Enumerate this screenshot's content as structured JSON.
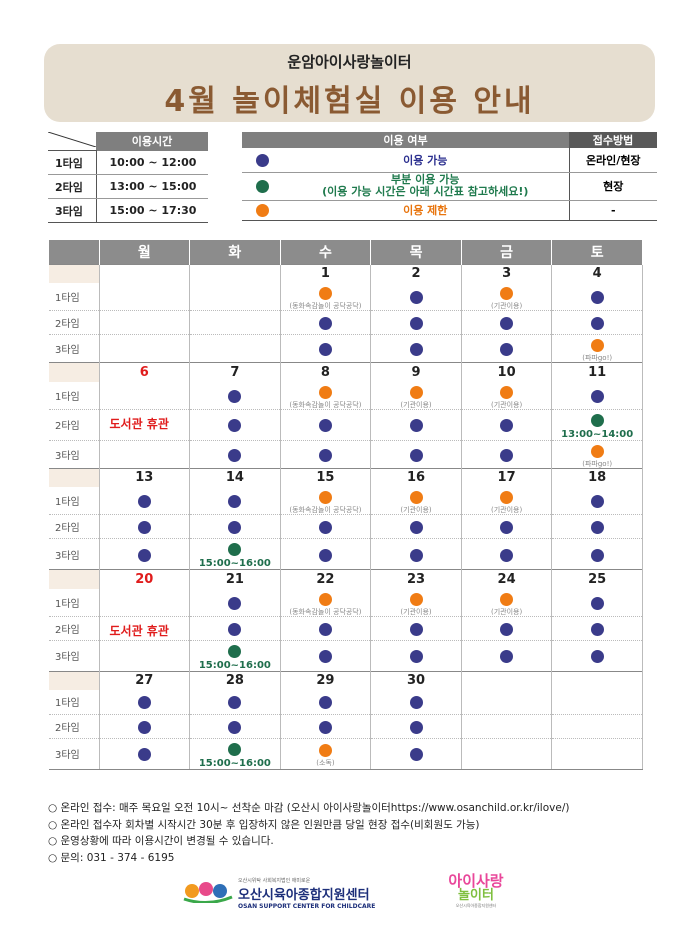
{
  "header": {
    "subtitle": "운암아이사랑놀이터",
    "title": "4월 놀이체험실 이용 안내"
  },
  "time_table": {
    "header": "이용시간",
    "slots": [
      {
        "label": "1타임",
        "time": "10:00 ~ 12:00"
      },
      {
        "label": "2타임",
        "time": "13:00 ~ 15:00"
      },
      {
        "label": "3타임",
        "time": "15:00 ~ 17:30"
      }
    ]
  },
  "legend": {
    "header_usage": "이용 여부",
    "header_method": "접수방법",
    "rows": [
      {
        "dot": "blue",
        "text": "이용 가능",
        "text2": "",
        "method": "온라인/현장"
      },
      {
        "dot": "green",
        "text": "부분 이용 가능",
        "text2": "(이용 가능 시간은 아래 시간표 참고하세요!)",
        "method": "현장"
      },
      {
        "dot": "orange",
        "text": "이용 제한",
        "text2": "",
        "method": "-"
      }
    ]
  },
  "colors": {
    "blue": "#3a3b8a",
    "green": "#1f6e4c",
    "orange": "#f07c14",
    "title": "#8a5a32",
    "red": "#e01c1c"
  },
  "calendar": {
    "days": [
      "월",
      "화",
      "수",
      "목",
      "금",
      "토"
    ],
    "slot_labels": [
      "1타임",
      "2타임",
      "3타임"
    ],
    "weeks": [
      {
        "dates": [
          "",
          "",
          "1",
          "2",
          "3",
          "4"
        ],
        "red": [],
        "holiday": "",
        "slots": [
          [
            null,
            null,
            {
              "c": "o",
              "n": "(동화속감놀이 공닥공닥)"
            },
            {
              "c": "b"
            },
            {
              "c": "o",
              "n": "(기관이용)"
            },
            {
              "c": "b"
            }
          ],
          [
            null,
            null,
            {
              "c": "b"
            },
            {
              "c": "b"
            },
            {
              "c": "b"
            },
            {
              "c": "b"
            }
          ],
          [
            null,
            null,
            {
              "c": "b"
            },
            {
              "c": "b"
            },
            {
              "c": "b"
            },
            {
              "c": "o",
              "n": "(파파go!)"
            }
          ]
        ]
      },
      {
        "dates": [
          "6",
          "7",
          "8",
          "9",
          "10",
          "11"
        ],
        "red": [
          0
        ],
        "holiday": "도서관 휴관",
        "slots": [
          [
            null,
            {
              "c": "b"
            },
            {
              "c": "o",
              "n": "(동화속감놀이 공닥공닥)"
            },
            {
              "c": "o",
              "n": "(기관이용)"
            },
            {
              "c": "o",
              "n": "(기관이용)"
            },
            {
              "c": "b"
            }
          ],
          [
            null,
            {
              "c": "b"
            },
            {
              "c": "b"
            },
            {
              "c": "b"
            },
            {
              "c": "b"
            },
            {
              "c": "g",
              "t": "13:00~14:00"
            }
          ],
          [
            null,
            {
              "c": "b"
            },
            {
              "c": "b"
            },
            {
              "c": "b"
            },
            {
              "c": "b"
            },
            {
              "c": "o",
              "n": "(파파go!)"
            }
          ]
        ]
      },
      {
        "dates": [
          "13",
          "14",
          "15",
          "16",
          "17",
          "18"
        ],
        "red": [],
        "holiday": "",
        "slots": [
          [
            {
              "c": "b"
            },
            {
              "c": "b"
            },
            {
              "c": "o",
              "n": "(동화속감놀이 공닥공닥)"
            },
            {
              "c": "o",
              "n": "(기관이용)"
            },
            {
              "c": "o",
              "n": "(기관이용)"
            },
            {
              "c": "b"
            }
          ],
          [
            {
              "c": "b"
            },
            {
              "c": "b"
            },
            {
              "c": "b"
            },
            {
              "c": "b"
            },
            {
              "c": "b"
            },
            {
              "c": "b"
            }
          ],
          [
            {
              "c": "b"
            },
            {
              "c": "g",
              "t": "15:00~16:00"
            },
            {
              "c": "b"
            },
            {
              "c": "b"
            },
            {
              "c": "b"
            },
            {
              "c": "b"
            }
          ]
        ]
      },
      {
        "dates": [
          "20",
          "21",
          "22",
          "23",
          "24",
          "25"
        ],
        "red": [
          0
        ],
        "holiday": "도서관 휴관",
        "slots": [
          [
            null,
            {
              "c": "b"
            },
            {
              "c": "o",
              "n": "(동화속감놀이 공닥공닥)"
            },
            {
              "c": "o",
              "n": "(기관이용)"
            },
            {
              "c": "o",
              "n": "(기관이용)"
            },
            {
              "c": "b"
            }
          ],
          [
            null,
            {
              "c": "b"
            },
            {
              "c": "b"
            },
            {
              "c": "b"
            },
            {
              "c": "b"
            },
            {
              "c": "b"
            }
          ],
          [
            null,
            {
              "c": "g",
              "t": "15:00~16:00"
            },
            {
              "c": "b"
            },
            {
              "c": "b"
            },
            {
              "c": "b"
            },
            {
              "c": "b"
            }
          ]
        ]
      },
      {
        "dates": [
          "27",
          "28",
          "29",
          "30",
          "",
          ""
        ],
        "red": [],
        "holiday": "",
        "slots": [
          [
            {
              "c": "b"
            },
            {
              "c": "b"
            },
            {
              "c": "b"
            },
            {
              "c": "b"
            },
            null,
            null
          ],
          [
            {
              "c": "b"
            },
            {
              "c": "b"
            },
            {
              "c": "b"
            },
            {
              "c": "b"
            },
            null,
            null
          ],
          [
            {
              "c": "b"
            },
            {
              "c": "g",
              "t": "15:00~16:00"
            },
            {
              "c": "o",
              "n": "(소독)"
            },
            {
              "c": "b"
            },
            null,
            null
          ]
        ]
      }
    ]
  },
  "notes": [
    "○ 온라인 접수: 매주 목요일 오전 10시~ 선착순 마감 (오산시 아이사랑놀이터https://www.osanchild.or.kr/ilove/)",
    "○ 온라인 접수자 회차별 시작시간 30분 후 입장하지 않은 인원만큼 당일 현장 접수(비회원도 가능)",
    "○ 운영상황에 따라 이용시간이 변경될 수 있습니다.",
    "○ 문의: 031 - 374 - 6195"
  ],
  "footer": {
    "org_small": "오산시위탁 사회복지법인 애미로운",
    "org_name": "오산시육아종합지원센터",
    "org_en": "OSAN SUPPORT CENTER FOR CHILDCARE",
    "brand_top": "아이사랑",
    "brand_bottom": "놀이터",
    "brand_small": "오산시육아종합지원센터"
  }
}
